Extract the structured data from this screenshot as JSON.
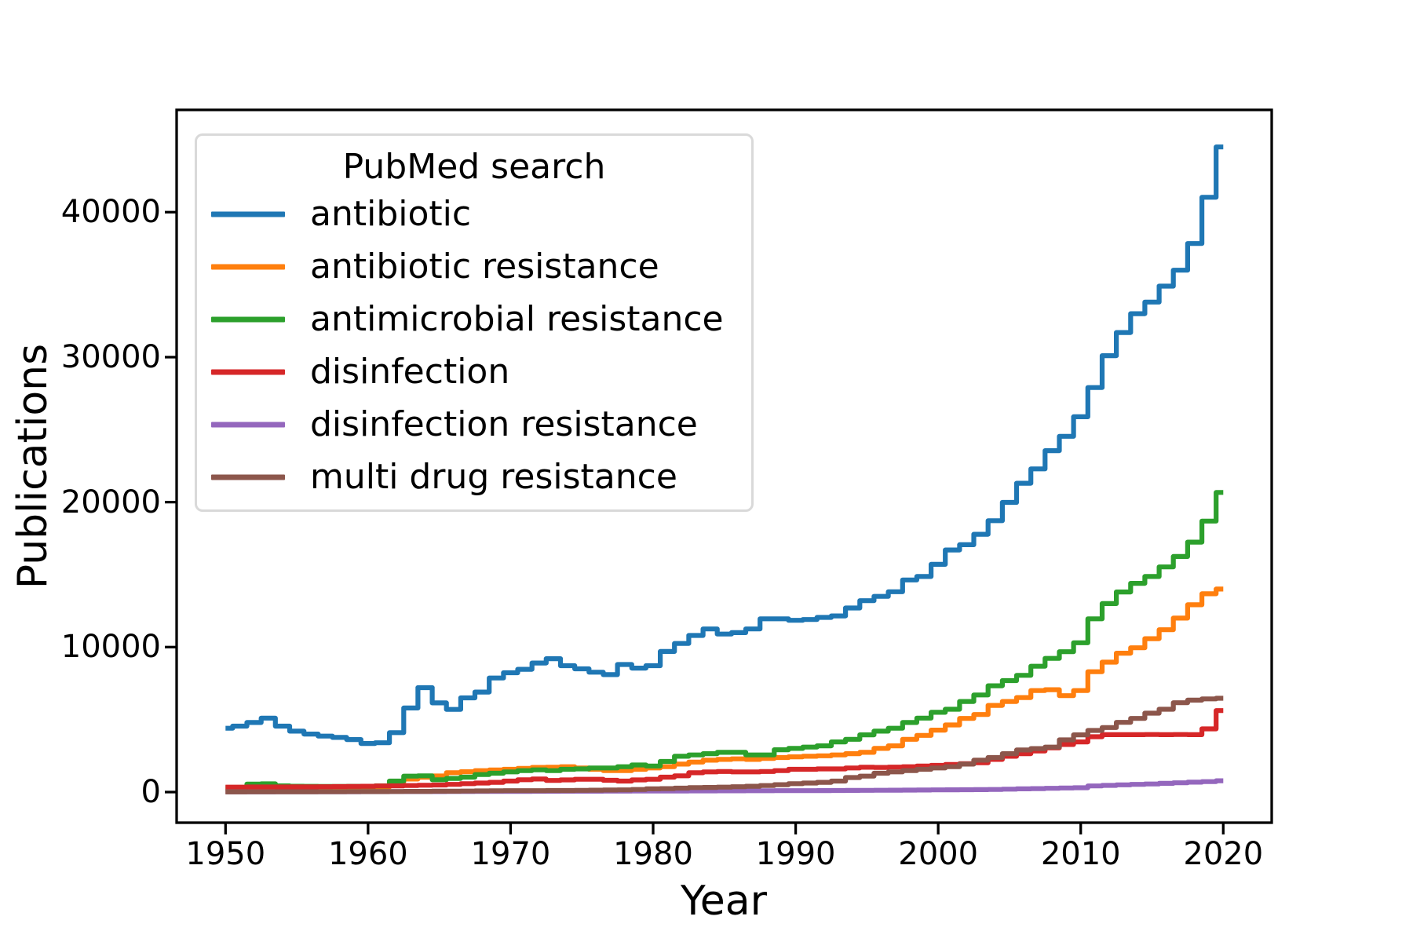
{
  "figure": {
    "kind": "step line chart",
    "background": "#ffffff"
  },
  "axes": {
    "x_label": "Year",
    "y_label": "Publications",
    "x_ticks": [
      1950,
      1960,
      1970,
      1980,
      1990,
      2000,
      2010,
      2020
    ],
    "y_ticks": [
      0,
      10000,
      20000,
      30000,
      40000
    ],
    "xlim": [
      1946.6,
      2023.4
    ],
    "ylim": [
      -2110,
      47020
    ],
    "grid": false,
    "spine_color": "#000000"
  },
  "legend": {
    "title": "PubMed search",
    "position": "upper left",
    "items": [
      {
        "label": "antibiotic",
        "color": "#1f77b4"
      },
      {
        "label": "antibiotic resistance",
        "color": "#ff7f0e"
      },
      {
        "label": "antimicrobial resistance",
        "color": "#2ca02c"
      },
      {
        "label": "disinfection",
        "color": "#d62728"
      },
      {
        "label": "disinfection resistance",
        "color": "#9467bd"
      },
      {
        "label": "multi drug resistance",
        "color": "#8c564b"
      }
    ]
  },
  "chart_data": {
    "type": "line",
    "step_style": "steps-mid",
    "title": "",
    "xlabel": "Year",
    "ylabel": "Publications",
    "x": [
      1950,
      1951,
      1952,
      1953,
      1954,
      1955,
      1956,
      1957,
      1958,
      1959,
      1960,
      1961,
      1962,
      1963,
      1964,
      1965,
      1966,
      1967,
      1968,
      1969,
      1970,
      1971,
      1972,
      1973,
      1974,
      1975,
      1976,
      1977,
      1978,
      1979,
      1980,
      1981,
      1982,
      1983,
      1984,
      1985,
      1986,
      1987,
      1988,
      1989,
      1990,
      1991,
      1992,
      1993,
      1994,
      1995,
      1996,
      1997,
      1998,
      1999,
      2000,
      2001,
      2002,
      2003,
      2004,
      2005,
      2006,
      2007,
      2008,
      2009,
      2010,
      2011,
      2012,
      2013,
      2014,
      2015,
      2016,
      2017,
      2018,
      2019,
      2020
    ],
    "series": [
      {
        "name": "antibiotic",
        "color": "#1f77b4",
        "values": [
          4400,
          4550,
          4800,
          5100,
          4550,
          4200,
          4000,
          3860,
          3770,
          3620,
          3350,
          3400,
          4100,
          5800,
          7200,
          6150,
          5700,
          6500,
          6900,
          7870,
          8230,
          8470,
          8900,
          9200,
          8720,
          8500,
          8270,
          8100,
          8800,
          8550,
          8720,
          9700,
          10250,
          10800,
          11250,
          10900,
          11000,
          11250,
          11950,
          11950,
          11850,
          11900,
          12050,
          12150,
          12700,
          13200,
          13500,
          13820,
          14630,
          14870,
          15710,
          16700,
          17060,
          17780,
          18720,
          19980,
          21300,
          22290,
          23550,
          24540,
          25890,
          27900,
          30100,
          31700,
          33000,
          33800,
          34900,
          36000,
          37840,
          41030,
          44500
        ]
      },
      {
        "name": "antibiotic resistance",
        "color": "#ff7f0e",
        "values": [
          40,
          50,
          60,
          80,
          80,
          90,
          100,
          120,
          150,
          170,
          220,
          350,
          700,
          900,
          1020,
          1110,
          1340,
          1400,
          1480,
          1520,
          1570,
          1630,
          1700,
          1710,
          1750,
          1660,
          1570,
          1480,
          1480,
          1570,
          1660,
          1750,
          1930,
          2070,
          2200,
          2250,
          2290,
          2250,
          2320,
          2380,
          2430,
          2470,
          2500,
          2560,
          2650,
          2740,
          3010,
          3190,
          3640,
          3910,
          4270,
          4630,
          5080,
          5350,
          5980,
          6250,
          6520,
          7000,
          7060,
          6650,
          7000,
          8300,
          8960,
          9580,
          9950,
          10580,
          11200,
          12000,
          12920,
          13680,
          14000
        ]
      },
      {
        "name": "antimicrobial resistance",
        "color": "#2ca02c",
        "values": [
          300,
          320,
          550,
          570,
          430,
          400,
          395,
          390,
          390,
          395,
          400,
          430,
          760,
          1100,
          1120,
          850,
          940,
          1030,
          1210,
          1300,
          1390,
          1480,
          1530,
          1480,
          1570,
          1600,
          1660,
          1660,
          1750,
          1870,
          1800,
          2110,
          2470,
          2560,
          2650,
          2740,
          2740,
          2560,
          2560,
          2920,
          3010,
          3100,
          3190,
          3460,
          3640,
          3950,
          4200,
          4400,
          4800,
          5100,
          5500,
          5710,
          6250,
          6700,
          7330,
          7690,
          8050,
          8680,
          9220,
          9680,
          10300,
          11950,
          13000,
          13800,
          14400,
          14870,
          15530,
          16250,
          17240,
          18690,
          20670
        ]
      },
      {
        "name": "disinfection",
        "color": "#d62728",
        "values": [
          340,
          340,
          350,
          350,
          350,
          360,
          360,
          370,
          380,
          390,
          400,
          420,
          430,
          450,
          470,
          490,
          530,
          580,
          620,
          670,
          760,
          850,
          900,
          800,
          840,
          880,
          880,
          810,
          760,
          840,
          880,
          1030,
          1120,
          1330,
          1390,
          1420,
          1390,
          1390,
          1420,
          1480,
          1570,
          1570,
          1600,
          1600,
          1660,
          1710,
          1700,
          1720,
          1750,
          1800,
          1840,
          1900,
          1960,
          2020,
          2250,
          2470,
          2650,
          2830,
          3050,
          3280,
          3460,
          3820,
          3960,
          3960,
          3960,
          3970,
          3960,
          3970,
          3960,
          4360,
          5620
        ]
      },
      {
        "name": "disinfection resistance",
        "color": "#9467bd",
        "values": [
          10,
          10,
          10,
          10,
          15,
          15,
          15,
          20,
          20,
          20,
          25,
          25,
          30,
          30,
          35,
          35,
          40,
          40,
          45,
          45,
          50,
          50,
          55,
          55,
          60,
          60,
          60,
          65,
          65,
          70,
          70,
          75,
          75,
          80,
          80,
          85,
          85,
          90,
          90,
          95,
          100,
          100,
          105,
          110,
          115,
          120,
          125,
          130,
          135,
          140,
          150,
          155,
          160,
          170,
          180,
          200,
          220,
          240,
          260,
          280,
          300,
          420,
          460,
          500,
          530,
          560,
          600,
          640,
          680,
          720,
          780
        ]
      },
      {
        "name": "multi drug resistance",
        "color": "#8c564b",
        "values": [
          10,
          10,
          15,
          15,
          20,
          20,
          20,
          25,
          25,
          30,
          30,
          35,
          40,
          50,
          50,
          60,
          60,
          70,
          80,
          90,
          100,
          100,
          100,
          110,
          110,
          120,
          130,
          140,
          150,
          180,
          220,
          240,
          270,
          310,
          320,
          340,
          370,
          400,
          450,
          510,
          580,
          620,
          670,
          760,
          1000,
          1100,
          1300,
          1390,
          1480,
          1570,
          1660,
          1750,
          1930,
          2200,
          2380,
          2650,
          2900,
          3000,
          3100,
          3600,
          3950,
          4250,
          4450,
          4810,
          5080,
          5440,
          5710,
          6160,
          6340,
          6430,
          6470
        ]
      }
    ]
  }
}
